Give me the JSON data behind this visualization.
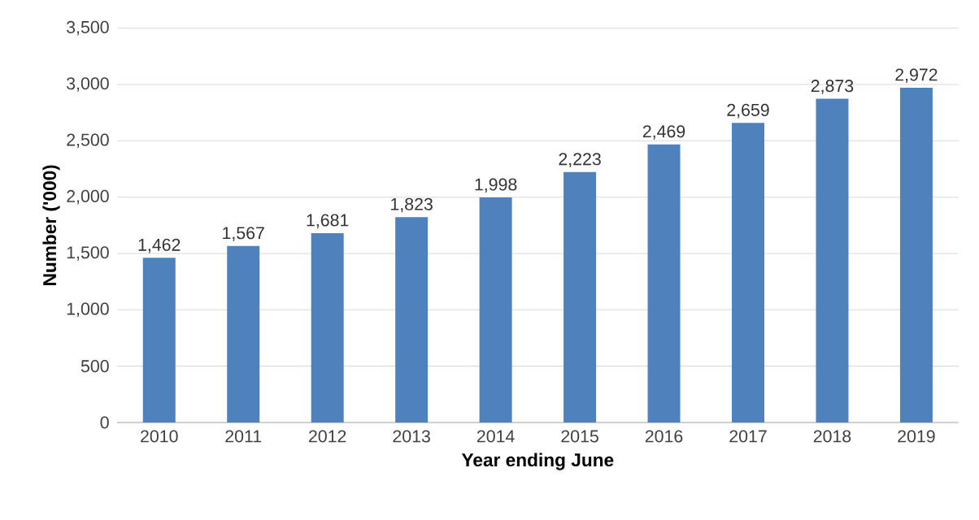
{
  "chart_data": {
    "type": "bar",
    "xlabel": "Year ending June",
    "ylabel": "Number ('000)",
    "categories": [
      "2010",
      "2011",
      "2012",
      "2013",
      "2014",
      "2015",
      "2016",
      "2017",
      "2018",
      "2019"
    ],
    "values": [
      1462,
      1567,
      1681,
      1823,
      1998,
      2223,
      2469,
      2659,
      2873,
      2972
    ],
    "value_labels": [
      "1,462",
      "1,567",
      "1,681",
      "1,823",
      "1,998",
      "2,223",
      "2,469",
      "2,659",
      "2,873",
      "2,972"
    ],
    "color": "#4f81bd",
    "ylim": [
      0,
      3500
    ],
    "yticks": [
      0,
      {
        "value": 500,
        "label": "500"
      },
      {
        "value": 1000,
        "label": "1,000"
      },
      {
        "value": 1500,
        "label": "1,500"
      },
      {
        "value": 2000,
        "label": "2,000"
      },
      {
        "value": 2500,
        "label": "2,500"
      },
      {
        "value": 3000,
        "label": "3,000"
      },
      {
        "value": 3500,
        "label": "3,500"
      }
    ],
    "grid": "y"
  }
}
